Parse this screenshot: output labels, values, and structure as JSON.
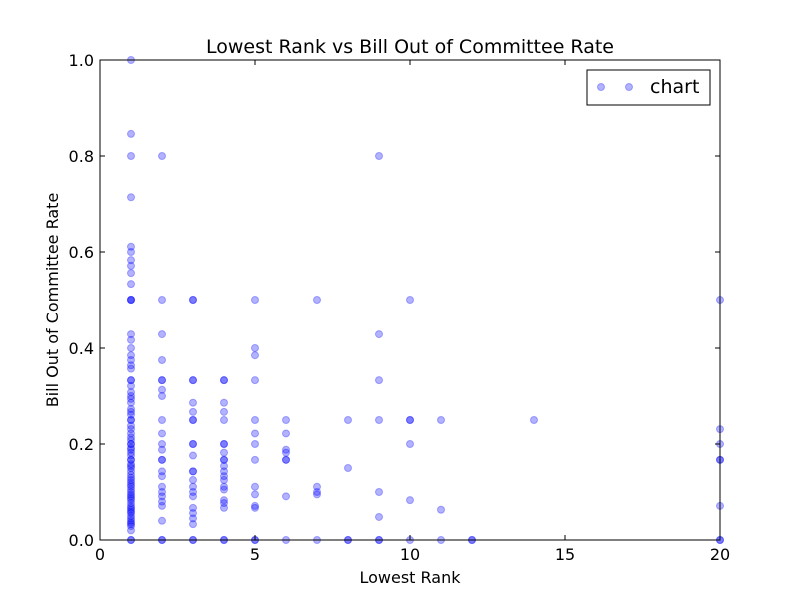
{
  "chart_data": {
    "type": "scatter",
    "title": "Lowest Rank vs Bill Out of Committee Rate",
    "xlabel": "Lowest Rank",
    "ylabel": "Bill Out of Committee Rate",
    "xlim": [
      0,
      20
    ],
    "ylim": [
      0,
      1.0
    ],
    "xticks": [
      0,
      5,
      10,
      15,
      20
    ],
    "xtick_labels": [
      "0",
      "5",
      "10",
      "15",
      "20"
    ],
    "yticks": [
      0.0,
      0.2,
      0.4,
      0.6,
      0.8,
      1.0
    ],
    "ytick_labels": [
      "0.0",
      "0.2",
      "0.4",
      "0.6",
      "0.8",
      "1.0"
    ],
    "grid": false,
    "legend_position": "top-right",
    "marker_color": "#0000ff",
    "marker_alpha": 0.3,
    "series": [
      {
        "name": "chart",
        "points": [
          [
            1,
            1.0
          ],
          [
            1,
            0.846
          ],
          [
            1,
            0.8
          ],
          [
            1,
            0.714
          ],
          [
            1,
            0.611
          ],
          [
            1,
            0.6
          ],
          [
            1,
            0.583
          ],
          [
            1,
            0.571
          ],
          [
            1,
            0.556
          ],
          [
            1,
            0.533
          ],
          [
            1,
            0.5
          ],
          [
            1,
            0.5
          ],
          [
            1,
            0.5
          ],
          [
            1,
            0.429
          ],
          [
            1,
            0.417
          ],
          [
            1,
            0.4
          ],
          [
            1,
            0.385
          ],
          [
            1,
            0.375
          ],
          [
            1,
            0.364
          ],
          [
            1,
            0.357
          ],
          [
            1,
            0.333
          ],
          [
            1,
            0.333
          ],
          [
            1,
            0.321
          ],
          [
            1,
            0.308
          ],
          [
            1,
            0.3
          ],
          [
            1,
            0.294
          ],
          [
            1,
            0.286
          ],
          [
            1,
            0.273
          ],
          [
            1,
            0.267
          ],
          [
            1,
            0.261
          ],
          [
            1,
            0.25
          ],
          [
            1,
            0.25
          ],
          [
            1,
            0.238
          ],
          [
            1,
            0.231
          ],
          [
            1,
            0.222
          ],
          [
            1,
            0.214
          ],
          [
            1,
            0.208
          ],
          [
            1,
            0.2
          ],
          [
            1,
            0.2
          ],
          [
            1,
            0.192
          ],
          [
            1,
            0.188
          ],
          [
            1,
            0.182
          ],
          [
            1,
            0.176
          ],
          [
            1,
            0.167
          ],
          [
            1,
            0.167
          ],
          [
            1,
            0.158
          ],
          [
            1,
            0.154
          ],
          [
            1,
            0.15
          ],
          [
            1,
            0.143
          ],
          [
            1,
            0.136
          ],
          [
            1,
            0.13
          ],
          [
            1,
            0.125
          ],
          [
            1,
            0.12
          ],
          [
            1,
            0.115
          ],
          [
            1,
            0.111
          ],
          [
            1,
            0.105
          ],
          [
            1,
            0.1
          ],
          [
            1,
            0.095
          ],
          [
            1,
            0.091
          ],
          [
            1,
            0.087
          ],
          [
            1,
            0.083
          ],
          [
            1,
            0.077
          ],
          [
            1,
            0.071
          ],
          [
            1,
            0.067
          ],
          [
            1,
            0.063
          ],
          [
            1,
            0.059
          ],
          [
            1,
            0.056
          ],
          [
            1,
            0.05
          ],
          [
            1,
            0.045
          ],
          [
            1,
            0.04
          ],
          [
            1,
            0.036
          ],
          [
            1,
            0.033
          ],
          [
            1,
            0.029
          ],
          [
            1,
            0.02
          ],
          [
            1,
            0.0
          ],
          [
            1,
            0.0
          ],
          [
            2,
            0.8
          ],
          [
            2,
            0.5
          ],
          [
            2,
            0.429
          ],
          [
            2,
            0.375
          ],
          [
            2,
            0.333
          ],
          [
            2,
            0.333
          ],
          [
            2,
            0.313
          ],
          [
            2,
            0.3
          ],
          [
            2,
            0.25
          ],
          [
            2,
            0.222
          ],
          [
            2,
            0.2
          ],
          [
            2,
            0.188
          ],
          [
            2,
            0.167
          ],
          [
            2,
            0.167
          ],
          [
            2,
            0.143
          ],
          [
            2,
            0.133
          ],
          [
            2,
            0.111
          ],
          [
            2,
            0.1
          ],
          [
            2,
            0.091
          ],
          [
            2,
            0.08
          ],
          [
            2,
            0.071
          ],
          [
            2,
            0.04
          ],
          [
            2,
            0.0
          ],
          [
            2,
            0.0
          ],
          [
            3,
            0.5
          ],
          [
            3,
            0.5
          ],
          [
            3,
            0.333
          ],
          [
            3,
            0.333
          ],
          [
            3,
            0.286
          ],
          [
            3,
            0.267
          ],
          [
            3,
            0.25
          ],
          [
            3,
            0.25
          ],
          [
            3,
            0.2
          ],
          [
            3,
            0.2
          ],
          [
            3,
            0.176
          ],
          [
            3,
            0.143
          ],
          [
            3,
            0.143
          ],
          [
            3,
            0.125
          ],
          [
            3,
            0.111
          ],
          [
            3,
            0.1
          ],
          [
            3,
            0.091
          ],
          [
            3,
            0.067
          ],
          [
            3,
            0.056
          ],
          [
            3,
            0.045
          ],
          [
            3,
            0.033
          ],
          [
            3,
            0.0
          ],
          [
            3,
            0.0
          ],
          [
            4,
            0.333
          ],
          [
            4,
            0.333
          ],
          [
            4,
            0.286
          ],
          [
            4,
            0.267
          ],
          [
            4,
            0.25
          ],
          [
            4,
            0.2
          ],
          [
            4,
            0.2
          ],
          [
            4,
            0.182
          ],
          [
            4,
            0.167
          ],
          [
            4,
            0.167
          ],
          [
            4,
            0.154
          ],
          [
            4,
            0.143
          ],
          [
            4,
            0.133
          ],
          [
            4,
            0.125
          ],
          [
            4,
            0.111
          ],
          [
            4,
            0.105
          ],
          [
            4,
            0.083
          ],
          [
            4,
            0.077
          ],
          [
            4,
            0.067
          ],
          [
            4,
            0.0
          ],
          [
            4,
            0.0
          ],
          [
            5,
            0.5
          ],
          [
            5,
            0.4
          ],
          [
            5,
            0.385
          ],
          [
            5,
            0.333
          ],
          [
            5,
            0.25
          ],
          [
            5,
            0.222
          ],
          [
            5,
            0.2
          ],
          [
            5,
            0.167
          ],
          [
            5,
            0.111
          ],
          [
            5,
            0.095
          ],
          [
            5,
            0.071
          ],
          [
            5,
            0.067
          ],
          [
            5,
            0.0
          ],
          [
            5,
            0.0
          ],
          [
            6,
            0.25
          ],
          [
            6,
            0.222
          ],
          [
            6,
            0.188
          ],
          [
            6,
            0.182
          ],
          [
            6,
            0.167
          ],
          [
            6,
            0.167
          ],
          [
            6,
            0.091
          ],
          [
            6,
            0.0
          ],
          [
            7,
            0.5
          ],
          [
            7,
            0.111
          ],
          [
            7,
            0.1
          ],
          [
            7,
            0.095
          ],
          [
            7,
            0.0
          ],
          [
            8,
            0.25
          ],
          [
            8,
            0.15
          ],
          [
            8,
            0.0
          ],
          [
            8,
            0.0
          ],
          [
            9,
            0.8
          ],
          [
            9,
            0.429
          ],
          [
            9,
            0.333
          ],
          [
            9,
            0.25
          ],
          [
            9,
            0.1
          ],
          [
            9,
            0.048
          ],
          [
            9,
            0.0
          ],
          [
            9,
            0.0
          ],
          [
            10,
            0.5
          ],
          [
            10,
            0.25
          ],
          [
            10,
            0.25
          ],
          [
            10,
            0.2
          ],
          [
            10,
            0.083
          ],
          [
            10,
            0.0
          ],
          [
            11,
            0.25
          ],
          [
            11,
            0.063
          ],
          [
            11,
            0.0
          ],
          [
            12,
            0.0
          ],
          [
            12,
            0.0
          ],
          [
            14,
            0.25
          ],
          [
            20,
            0.5
          ],
          [
            20,
            0.231
          ],
          [
            20,
            0.2
          ],
          [
            20,
            0.167
          ],
          [
            20,
            0.167
          ],
          [
            20,
            0.071
          ],
          [
            20,
            0.0
          ],
          [
            20,
            0.0
          ]
        ]
      }
    ]
  }
}
